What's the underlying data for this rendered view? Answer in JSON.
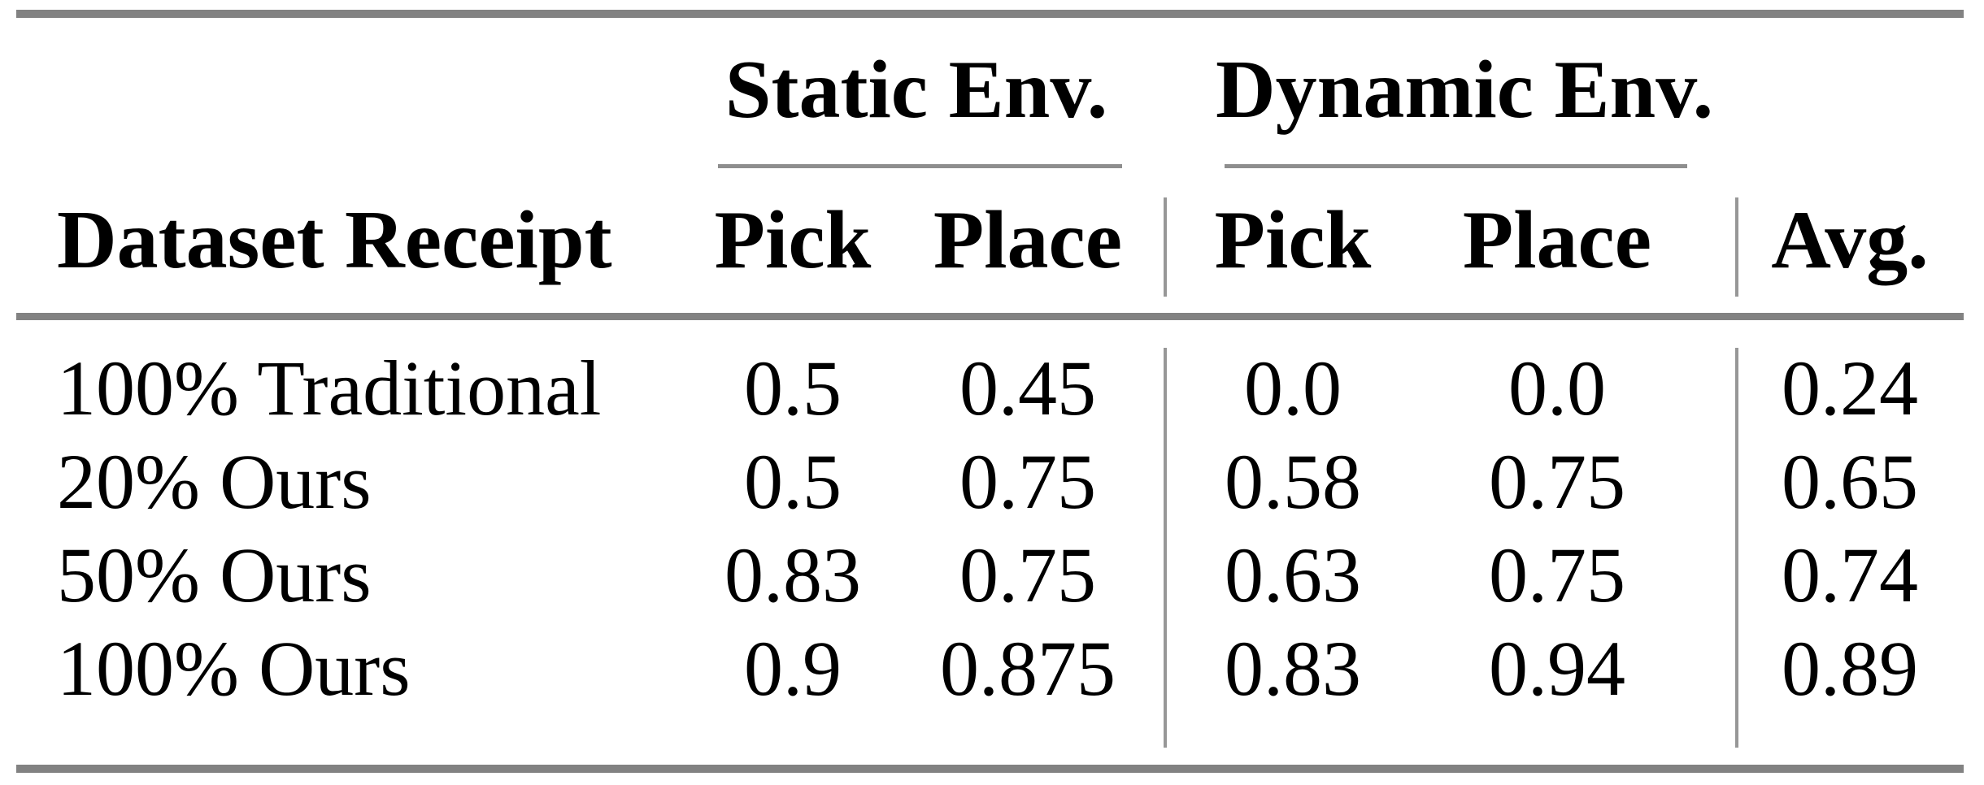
{
  "table": {
    "groups": [
      {
        "label": "Static Env."
      },
      {
        "label": "Dynamic Env."
      }
    ],
    "columns": [
      "Dataset Receipt",
      "Pick",
      "Place",
      "Pick",
      "Place",
      "Avg."
    ],
    "rows": [
      [
        "100% Traditional",
        "0.5",
        "0.45",
        "0.0",
        "0.0",
        "0.24"
      ],
      [
        "20% Ours",
        "0.5",
        "0.75",
        "0.58",
        "0.75",
        "0.65"
      ],
      [
        "50% Ours",
        "0.83",
        "0.75",
        "0.63",
        "0.75",
        "0.74"
      ],
      [
        "100% Ours",
        "0.9",
        "0.875",
        "0.83",
        "0.94",
        "0.89"
      ]
    ],
    "colors": {
      "rule_heavy": "#828282",
      "rule_light": "#8e8e8e",
      "divider": "#979797",
      "text": "#000000"
    }
  },
  "chart_data": {
    "type": "table",
    "title": "",
    "row_header": "Dataset Receipt",
    "column_groups": [
      {
        "label": "Static Env.",
        "columns": [
          "Pick",
          "Place"
        ]
      },
      {
        "label": "Dynamic Env.",
        "columns": [
          "Pick",
          "Place"
        ]
      },
      {
        "label": "",
        "columns": [
          "Avg."
        ]
      }
    ],
    "rows": [
      {
        "dataset_receipt": "100% Traditional",
        "static_pick": 0.5,
        "static_place": 0.45,
        "dynamic_pick": 0.0,
        "dynamic_place": 0.0,
        "avg": 0.24
      },
      {
        "dataset_receipt": "20% Ours",
        "static_pick": 0.5,
        "static_place": 0.75,
        "dynamic_pick": 0.58,
        "dynamic_place": 0.75,
        "avg": 0.65
      },
      {
        "dataset_receipt": "50% Ours",
        "static_pick": 0.83,
        "static_place": 0.75,
        "dynamic_pick": 0.63,
        "dynamic_place": 0.75,
        "avg": 0.74
      },
      {
        "dataset_receipt": "100% Ours",
        "static_pick": 0.9,
        "static_place": 0.875,
        "dynamic_pick": 0.83,
        "dynamic_place": 0.94,
        "avg": 0.89
      }
    ]
  }
}
